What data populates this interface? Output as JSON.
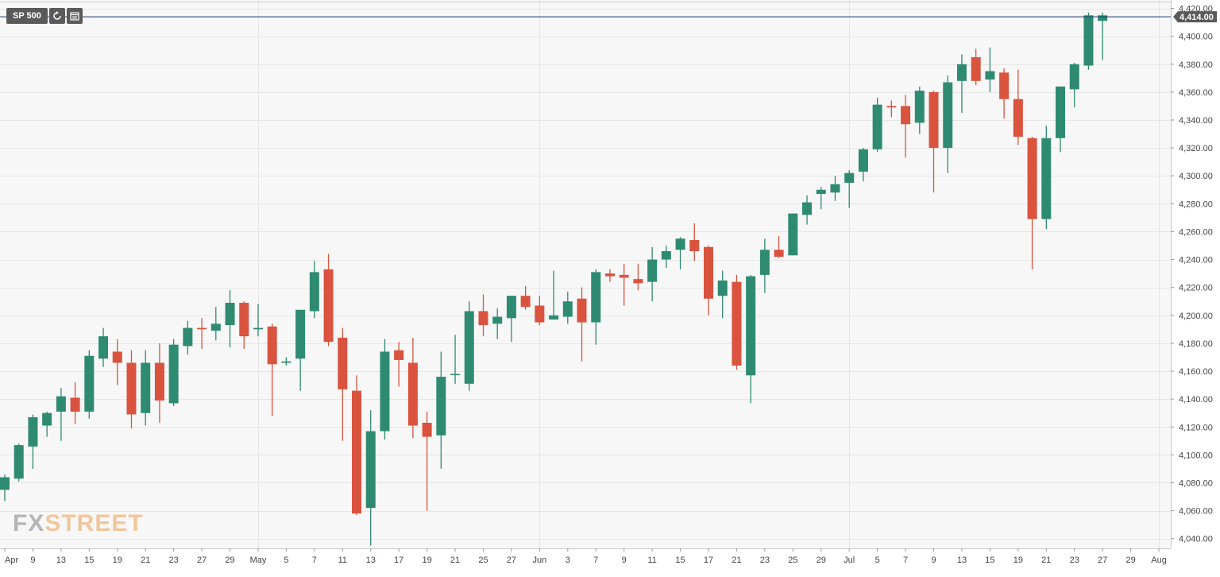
{
  "symbol": "SP 500",
  "toolbar": {
    "refresh_icon": "refresh-icon",
    "calendar_icon": "calendar-icon"
  },
  "watermark": {
    "prefix": "FX",
    "suffix": "STREET"
  },
  "colors": {
    "up": "#2e8b72",
    "down": "#d9533f",
    "grid": "#e6e6e6",
    "plot_bg": "#f7f7f7",
    "price_line": "#1a3a6e",
    "axis_text": "#444444",
    "label_bg": "#5a5a5a"
  },
  "chart_data": {
    "type": "candlestick",
    "title": "SP 500",
    "last_price_label": "4,414.00",
    "last_price": 4414,
    "ylim": [
      4033,
      4426
    ],
    "y_ticks": [
      4040,
      4060,
      4080,
      4100,
      4120,
      4140,
      4160,
      4180,
      4200,
      4220,
      4240,
      4260,
      4280,
      4300,
      4320,
      4340,
      4360,
      4380,
      4400,
      4420
    ],
    "y_tick_labels": [
      "4,040.00",
      "4,060.00",
      "4,080.00",
      "4,100.00",
      "4,120.00",
      "4,140.00",
      "4,160.00",
      "4,180.00",
      "4,200.00",
      "4,220.00",
      "4,240.00",
      "4,260.00",
      "4,280.00",
      "4,300.00",
      "4,320.00",
      "4,340.00",
      "4,360.00",
      "4,380.00",
      "4,400.00",
      "4,420.00"
    ],
    "x_labels": [
      "Apr",
      "9",
      "13",
      "15",
      "19",
      "21",
      "23",
      "27",
      "29",
      "May",
      "5",
      "7",
      "11",
      "13",
      "17",
      "19",
      "21",
      "25",
      "27",
      "Jun",
      "3",
      "7",
      "9",
      "11",
      "15",
      "17",
      "21",
      "23",
      "25",
      "29",
      "Jul",
      "5",
      "7",
      "9",
      "13",
      "15",
      "19",
      "21",
      "23",
      "27",
      "29",
      "Aug"
    ],
    "x_label_slots": [
      0,
      2,
      4,
      6,
      8,
      10,
      12,
      14,
      16,
      18,
      20,
      22,
      24,
      26,
      28,
      30,
      32,
      34,
      36,
      38,
      40,
      42,
      44,
      46,
      48,
      50,
      52,
      54,
      56,
      58,
      60,
      62,
      64,
      66,
      68,
      70,
      72,
      74,
      76,
      78,
      80,
      82
    ],
    "gridline_slots": [
      18,
      38,
      60,
      82
    ],
    "candles": [
      {
        "o": 4075,
        "h": 4086,
        "l": 4067,
        "c": 4084
      },
      {
        "o": 4083,
        "h": 4108,
        "l": 4081,
        "c": 4107
      },
      {
        "o": 4106,
        "h": 4129,
        "l": 4090,
        "c": 4127
      },
      {
        "o": 4121,
        "h": 4131,
        "l": 4113,
        "c": 4130
      },
      {
        "o": 4131,
        "h": 4148,
        "l": 4110,
        "c": 4142
      },
      {
        "o": 4141,
        "h": 4152,
        "l": 4122,
        "c": 4131
      },
      {
        "o": 4131,
        "h": 4175,
        "l": 4126,
        "c": 4171
      },
      {
        "o": 4169,
        "h": 4191,
        "l": 4163,
        "c": 4185
      },
      {
        "o": 4174,
        "h": 4183,
        "l": 4150,
        "c": 4166
      },
      {
        "o": 4166,
        "h": 4175,
        "l": 4119,
        "c": 4129
      },
      {
        "o": 4130,
        "h": 4175,
        "l": 4121,
        "c": 4166
      },
      {
        "o": 4166,
        "h": 4180,
        "l": 4123,
        "c": 4139
      },
      {
        "o": 4137,
        "h": 4183,
        "l": 4135,
        "c": 4179
      },
      {
        "o": 4178,
        "h": 4196,
        "l": 4172,
        "c": 4191
      },
      {
        "o": 4191,
        "h": 4198,
        "l": 4176,
        "c": 4190
      },
      {
        "o": 4189,
        "h": 4206,
        "l": 4182,
        "c": 4194
      },
      {
        "o": 4193,
        "h": 4218,
        "l": 4177,
        "c": 4209
      },
      {
        "o": 4209,
        "h": 4210,
        "l": 4176,
        "c": 4185
      },
      {
        "o": 4190,
        "h": 4208,
        "l": 4185,
        "c": 4191
      },
      {
        "o": 4192,
        "h": 4194,
        "l": 4128,
        "c": 4165
      },
      {
        "o": 4166,
        "h": 4170,
        "l": 4164,
        "c": 4167
      },
      {
        "o": 4169,
        "h": 4204,
        "l": 4146,
        "c": 4204
      },
      {
        "o": 4203,
        "h": 4239,
        "l": 4198,
        "c": 4231
      },
      {
        "o": 4233,
        "h": 4244,
        "l": 4178,
        "c": 4181
      },
      {
        "o": 4184,
        "h": 4191,
        "l": 4110,
        "c": 4147
      },
      {
        "o": 4146,
        "h": 4157,
        "l": 4057,
        "c": 4058
      },
      {
        "o": 4062,
        "h": 4132,
        "l": 4035,
        "c": 4117
      },
      {
        "o": 4117,
        "h": 4183,
        "l": 4111,
        "c": 4174
      },
      {
        "o": 4175,
        "h": 4181,
        "l": 4149,
        "c": 4168
      },
      {
        "o": 4166,
        "h": 4184,
        "l": 4112,
        "c": 4121
      },
      {
        "o": 4123,
        "h": 4131,
        "l": 4060,
        "c": 4113
      },
      {
        "o": 4114,
        "h": 4174,
        "l": 4090,
        "c": 4156
      },
      {
        "o": 4158,
        "h": 4186,
        "l": 4151,
        "c": 4158
      },
      {
        "o": 4151,
        "h": 4210,
        "l": 4146,
        "c": 4203
      },
      {
        "o": 4203,
        "h": 4215,
        "l": 4185,
        "c": 4193
      },
      {
        "o": 4194,
        "h": 4205,
        "l": 4183,
        "c": 4199
      },
      {
        "o": 4198,
        "h": 4214,
        "l": 4181,
        "c": 4214
      },
      {
        "o": 4214,
        "h": 4221,
        "l": 4204,
        "c": 4206
      },
      {
        "o": 4207,
        "h": 4214,
        "l": 4193,
        "c": 4195
      },
      {
        "o": 4197,
        "h": 4232,
        "l": 4197,
        "c": 4200
      },
      {
        "o": 4199,
        "h": 4217,
        "l": 4194,
        "c": 4210
      },
      {
        "o": 4212,
        "h": 4220,
        "l": 4167,
        "c": 4195
      },
      {
        "o": 4195,
        "h": 4233,
        "l": 4179,
        "c": 4231
      },
      {
        "o": 4230,
        "h": 4233,
        "l": 4224,
        "c": 4228
      },
      {
        "o": 4229,
        "h": 4237,
        "l": 4207,
        "c": 4227
      },
      {
        "o": 4226,
        "h": 4237,
        "l": 4218,
        "c": 4223
      },
      {
        "o": 4224,
        "h": 4249,
        "l": 4210,
        "c": 4240
      },
      {
        "o": 4240,
        "h": 4250,
        "l": 4234,
        "c": 4246
      },
      {
        "o": 4247,
        "h": 4256,
        "l": 4233,
        "c": 4255
      },
      {
        "o": 4254,
        "h": 4266,
        "l": 4239,
        "c": 4246
      },
      {
        "o": 4249,
        "h": 4250,
        "l": 4200,
        "c": 4212
      },
      {
        "o": 4214,
        "h": 4232,
        "l": 4198,
        "c": 4225
      },
      {
        "o": 4224,
        "h": 4229,
        "l": 4161,
        "c": 4164
      },
      {
        "o": 4157,
        "h": 4229,
        "l": 4137,
        "c": 4228
      },
      {
        "o": 4229,
        "h": 4255,
        "l": 4216,
        "c": 4247
      },
      {
        "o": 4247,
        "h": 4257,
        "l": 4241,
        "c": 4242
      },
      {
        "o": 4243,
        "h": 4273,
        "l": 4243,
        "c": 4273
      },
      {
        "o": 4272,
        "h": 4286,
        "l": 4265,
        "c": 4281
      },
      {
        "o": 4287,
        "h": 4292,
        "l": 4276,
        "c": 4290
      },
      {
        "o": 4288,
        "h": 4300,
        "l": 4282,
        "c": 4294
      },
      {
        "o": 4295,
        "h": 4304,
        "l": 4277,
        "c": 4302
      },
      {
        "o": 4303,
        "h": 4320,
        "l": 4296,
        "c": 4319
      },
      {
        "o": 4319,
        "h": 4356,
        "l": 4317,
        "c": 4351
      },
      {
        "o": 4350,
        "h": 4354,
        "l": 4342,
        "c": 4349
      },
      {
        "o": 4350,
        "h": 4358,
        "l": 4313,
        "c": 4337
      },
      {
        "o": 4338,
        "h": 4364,
        "l": 4330,
        "c": 4361
      },
      {
        "o": 4360,
        "h": 4361,
        "l": 4288,
        "c": 4320
      },
      {
        "o": 4320,
        "h": 4372,
        "l": 4302,
        "c": 4367
      },
      {
        "o": 4368,
        "h": 4387,
        "l": 4345,
        "c": 4380
      },
      {
        "o": 4385,
        "h": 4391,
        "l": 4365,
        "c": 4368
      },
      {
        "o": 4369,
        "h": 4392,
        "l": 4360,
        "c": 4375
      },
      {
        "o": 4374,
        "h": 4377,
        "l": 4341,
        "c": 4355
      },
      {
        "o": 4355,
        "h": 4376,
        "l": 4322,
        "c": 4328
      },
      {
        "o": 4327,
        "h": 4328,
        "l": 4233,
        "c": 4269
      },
      {
        "o": 4269,
        "h": 4336,
        "l": 4262,
        "c": 4327
      },
      {
        "o": 4327,
        "h": 4364,
        "l": 4317,
        "c": 4364
      },
      {
        "o": 4362,
        "h": 4381,
        "l": 4349,
        "c": 4380
      },
      {
        "o": 4379,
        "h": 4417,
        "l": 4376,
        "c": 4415
      },
      {
        "o": 4411,
        "h": 4417,
        "l": 4383,
        "c": 4415
      }
    ],
    "grid": true
  }
}
